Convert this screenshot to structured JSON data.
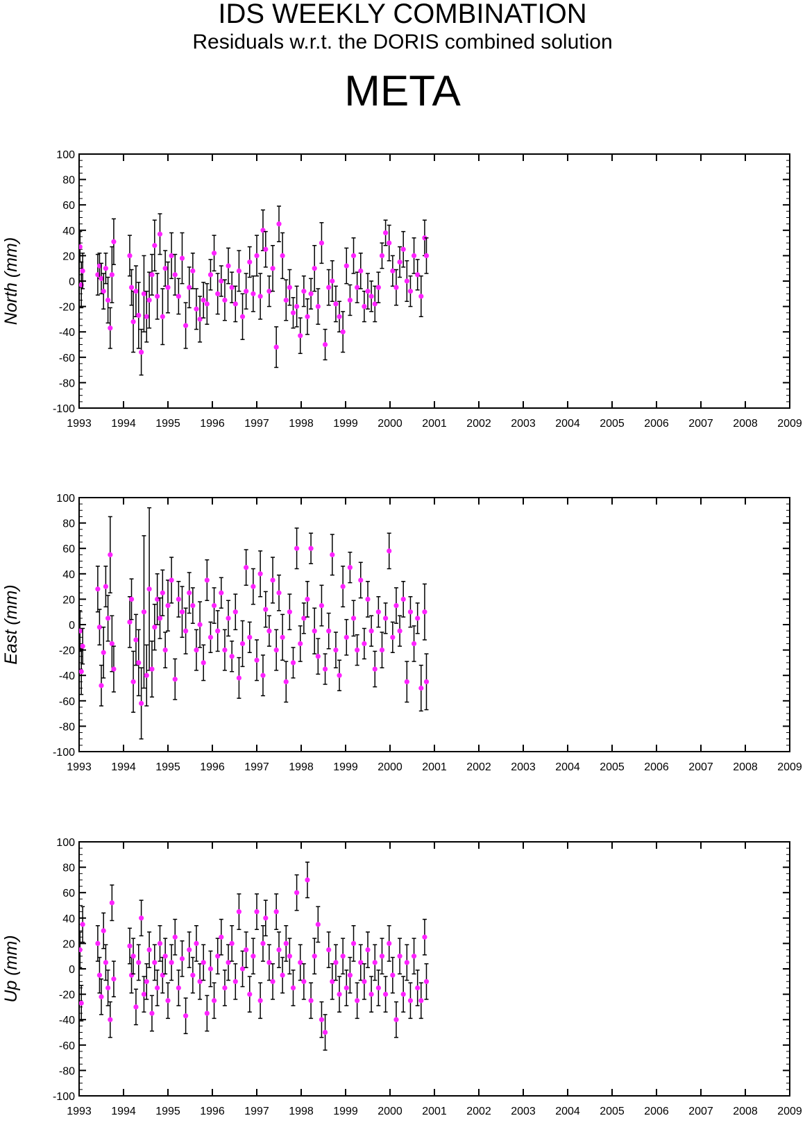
{
  "header": {
    "title": "IDS WEEKLY COMBINATION",
    "subtitle": "Residuals w.r.t. the DORIS combined solution",
    "station": "META"
  },
  "colors": {
    "marker": "#ff22ff",
    "errorbar": "#000000",
    "axis": "#000000"
  },
  "chart_data": [
    {
      "type": "scatter",
      "ylabel": "North (mm)",
      "xlim": [
        1993,
        2009
      ],
      "ylim": [
        -100,
        100
      ],
      "xticks": [
        1993,
        1994,
        1995,
        1996,
        1997,
        1998,
        1999,
        2000,
        2001,
        2002,
        2003,
        2004,
        2005,
        2006,
        2007,
        2008,
        2009
      ],
      "yticks": [
        100,
        80,
        60,
        40,
        20,
        0,
        -20,
        -40,
        -60,
        -80,
        -100
      ],
      "series": [
        {
          "x": [
            1993.02,
            1993.05,
            1993.08,
            1993.42,
            1993.46,
            1993.5,
            1993.55,
            1993.6,
            1993.65,
            1993.7,
            1993.74,
            1993.78,
            1994.14,
            1994.18,
            1994.22,
            1994.28,
            1994.34,
            1994.4,
            1994.46,
            1994.52,
            1994.58,
            1994.64,
            1994.7,
            1994.76,
            1994.82,
            1994.88,
            1994.94,
            1995.0,
            1995.08,
            1995.16,
            1995.24,
            1995.32,
            1995.4,
            1995.48,
            1995.56,
            1995.64,
            1995.72,
            1995.8,
            1995.88,
            1995.96,
            1996.04,
            1996.12,
            1996.2,
            1996.28,
            1996.36,
            1996.44,
            1996.52,
            1996.6,
            1996.68,
            1996.76,
            1996.84,
            1996.92,
            1997.0,
            1997.08,
            1997.14,
            1997.2,
            1997.28,
            1997.36,
            1997.44,
            1997.5,
            1997.58,
            1997.66,
            1997.74,
            1997.82,
            1997.9,
            1997.98,
            1998.06,
            1998.14,
            1998.22,
            1998.3,
            1998.38,
            1998.46,
            1998.54,
            1998.62,
            1998.7,
            1998.78,
            1998.86,
            1998.94,
            1999.02,
            1999.1,
            1999.18,
            1999.26,
            1999.34,
            1999.42,
            1999.5,
            1999.58,
            1999.66,
            1999.74,
            1999.82,
            1999.9,
            1999.98,
            2000.06,
            2000.14,
            2000.22,
            2000.3,
            2000.38,
            2000.46,
            2000.54,
            2000.62,
            2000.7,
            2000.78,
            2000.82
          ],
          "y": [
            27,
            -3,
            8,
            5,
            12,
            2,
            -8,
            10,
            -15,
            -37,
            5,
            31,
            20,
            -5,
            -32,
            -8,
            -27,
            -56,
            -10,
            -28,
            -15,
            5,
            28,
            -12,
            37,
            -28,
            10,
            -5,
            20,
            5,
            -12,
            18,
            -35,
            -5,
            8,
            -22,
            -30,
            -15,
            -18,
            5,
            22,
            -10,
            0,
            -15,
            12,
            -5,
            -18,
            8,
            -28,
            -8,
            15,
            -10,
            20,
            -12,
            40,
            25,
            -8,
            10,
            -52,
            45,
            20,
            -15,
            -5,
            -25,
            -20,
            -43,
            -8,
            -28,
            -10,
            10,
            -20,
            30,
            -50,
            -5,
            0,
            -18,
            -28,
            -40,
            12,
            -15,
            20,
            -5,
            8,
            -20,
            -8,
            -12,
            -18,
            -5,
            20,
            38,
            30,
            8,
            -5,
            15,
            25,
            0,
            -8,
            20,
            5,
            -12,
            34,
            20
          ],
          "err": [
            12,
            18,
            14,
            16,
            10,
            12,
            14,
            12,
            18,
            16,
            22,
            18,
            16,
            14,
            24,
            20,
            26,
            18,
            30,
            20,
            22,
            16,
            20,
            18,
            16,
            22,
            14,
            20,
            18,
            16,
            14,
            20,
            18,
            16,
            14,
            16,
            18,
            14,
            16,
            12,
            14,
            16,
            12,
            16,
            14,
            12,
            14,
            16,
            18,
            14,
            12,
            14,
            16,
            18,
            16,
            14,
            12,
            18,
            16,
            14,
            18,
            16,
            14,
            12,
            16,
            14,
            12,
            14,
            12,
            18,
            14,
            16,
            12,
            14,
            16,
            14,
            12,
            16,
            14,
            12,
            14,
            12,
            14,
            12,
            14,
            12,
            14,
            12,
            10,
            10,
            14,
            12,
            14,
            12,
            14,
            16,
            12,
            14,
            12,
            16,
            14,
            14
          ]
        }
      ]
    },
    {
      "type": "scatter",
      "ylabel": "East (mm)",
      "xlim": [
        1993,
        2009
      ],
      "ylim": [
        -100,
        100
      ],
      "xticks": [
        1993,
        1994,
        1995,
        1996,
        1997,
        1998,
        1999,
        2000,
        2001,
        2002,
        2003,
        2004,
        2005,
        2006,
        2007,
        2008,
        2009
      ],
      "yticks": [
        100,
        80,
        60,
        40,
        20,
        0,
        -20,
        -40,
        -60,
        -80,
        -100
      ],
      "series": [
        {
          "x": [
            1993.02,
            1993.05,
            1993.08,
            1993.42,
            1993.46,
            1993.5,
            1993.55,
            1993.6,
            1993.65,
            1993.7,
            1993.74,
            1993.78,
            1994.14,
            1994.18,
            1994.22,
            1994.28,
            1994.34,
            1994.4,
            1994.46,
            1994.52,
            1994.58,
            1994.64,
            1994.7,
            1994.76,
            1994.82,
            1994.88,
            1994.94,
            1995.0,
            1995.08,
            1995.16,
            1995.24,
            1995.32,
            1995.4,
            1995.48,
            1995.56,
            1995.64,
            1995.72,
            1995.8,
            1995.88,
            1995.96,
            1996.04,
            1996.12,
            1996.2,
            1996.28,
            1996.36,
            1996.44,
            1996.52,
            1996.6,
            1996.68,
            1996.76,
            1996.84,
            1996.92,
            1997.0,
            1997.08,
            1997.14,
            1997.2,
            1997.28,
            1997.36,
            1997.44,
            1997.5,
            1997.58,
            1997.66,
            1997.74,
            1997.82,
            1997.9,
            1997.98,
            1998.06,
            1998.14,
            1998.22,
            1998.3,
            1998.38,
            1998.46,
            1998.54,
            1998.62,
            1998.7,
            1998.78,
            1998.86,
            1998.94,
            1999.02,
            1999.1,
            1999.18,
            1999.26,
            1999.34,
            1999.42,
            1999.5,
            1999.58,
            1999.66,
            1999.74,
            1999.82,
            1999.9,
            1999.98,
            2000.06,
            2000.14,
            2000.22,
            2000.3,
            2000.38,
            2000.46,
            2000.54,
            2000.62,
            2000.7,
            2000.78,
            2000.82
          ],
          "y": [
            -5,
            -37,
            -17,
            28,
            -2,
            -48,
            -22,
            30,
            5,
            55,
            -15,
            -35,
            2,
            20,
            -45,
            -12,
            -30,
            -62,
            10,
            -40,
            28,
            -35,
            -2,
            20,
            5,
            25,
            -20,
            15,
            35,
            -43,
            20,
            10,
            -5,
            25,
            15,
            -20,
            0,
            -30,
            35,
            -10,
            15,
            -5,
            25,
            -20,
            5,
            -25,
            10,
            -42,
            -15,
            45,
            -10,
            30,
            -28,
            40,
            -40,
            12,
            -5,
            35,
            -20,
            25,
            -10,
            -45,
            10,
            -30,
            60,
            -15,
            5,
            20,
            60,
            -5,
            -25,
            15,
            -35,
            -5,
            55,
            -20,
            -40,
            30,
            -10,
            45,
            5,
            -20,
            35,
            -15,
            20,
            -5,
            -35,
            10,
            -20,
            5,
            58,
            -10,
            15,
            -5,
            20,
            -45,
            10,
            -15,
            5,
            -50,
            10,
            -45
          ],
          "err": [
            16,
            18,
            14,
            18,
            14,
            16,
            20,
            16,
            18,
            30,
            22,
            18,
            20,
            16,
            24,
            20,
            26,
            28,
            60,
            24,
            64,
            22,
            18,
            20,
            16,
            18,
            14,
            20,
            18,
            16,
            14,
            20,
            18,
            16,
            14,
            16,
            18,
            14,
            16,
            12,
            14,
            16,
            12,
            16,
            14,
            12,
            14,
            16,
            18,
            14,
            12,
            14,
            16,
            18,
            16,
            14,
            12,
            18,
            16,
            14,
            18,
            16,
            14,
            12,
            16,
            14,
            12,
            14,
            12,
            18,
            14,
            16,
            12,
            14,
            16,
            14,
            12,
            16,
            14,
            12,
            14,
            12,
            14,
            12,
            14,
            12,
            14,
            12,
            14,
            12,
            14,
            12,
            14,
            12,
            14,
            16,
            12,
            14,
            12,
            18,
            22,
            22
          ]
        }
      ]
    },
    {
      "type": "scatter",
      "ylabel": "Up (mm)",
      "xlim": [
        1993,
        2009
      ],
      "ylim": [
        -100,
        100
      ],
      "xticks": [
        1993,
        1994,
        1995,
        1996,
        1997,
        1998,
        1999,
        2000,
        2001,
        2002,
        2003,
        2004,
        2005,
        2006,
        2007,
        2008,
        2009
      ],
      "yticks": [
        100,
        80,
        60,
        40,
        20,
        0,
        -20,
        -40,
        -60,
        -80,
        -100
      ],
      "series": [
        {
          "x": [
            1993.02,
            1993.05,
            1993.08,
            1993.42,
            1993.46,
            1993.5,
            1993.55,
            1993.6,
            1993.65,
            1993.7,
            1993.74,
            1993.78,
            1994.14,
            1994.18,
            1994.22,
            1994.28,
            1994.34,
            1994.4,
            1994.46,
            1994.52,
            1994.58,
            1994.64,
            1994.7,
            1994.76,
            1994.82,
            1994.88,
            1994.94,
            1995.0,
            1995.08,
            1995.16,
            1995.24,
            1995.32,
            1995.4,
            1995.48,
            1995.56,
            1995.64,
            1995.72,
            1995.8,
            1995.88,
            1995.96,
            1996.04,
            1996.12,
            1996.2,
            1996.28,
            1996.36,
            1996.44,
            1996.52,
            1996.6,
            1996.68,
            1996.76,
            1996.84,
            1996.92,
            1997.0,
            1997.08,
            1997.14,
            1997.2,
            1997.28,
            1997.36,
            1997.44,
            1997.5,
            1997.58,
            1997.66,
            1997.74,
            1997.82,
            1997.9,
            1997.98,
            1998.06,
            1998.14,
            1998.22,
            1998.3,
            1998.38,
            1998.46,
            1998.54,
            1998.62,
            1998.7,
            1998.78,
            1998.86,
            1998.94,
            1999.02,
            1999.1,
            1999.18,
            1999.26,
            1999.34,
            1999.42,
            1999.5,
            1999.58,
            1999.66,
            1999.74,
            1999.82,
            1999.9,
            1999.98,
            2000.06,
            2000.14,
            2000.22,
            2000.3,
            2000.38,
            2000.46,
            2000.54,
            2000.62,
            2000.7,
            2000.78,
            2000.82
          ],
          "y": [
            15,
            -27,
            35,
            20,
            -5,
            -22,
            30,
            5,
            -15,
            -40,
            52,
            -8,
            18,
            -5,
            10,
            -30,
            5,
            40,
            -20,
            -10,
            15,
            -35,
            5,
            -15,
            20,
            -5,
            10,
            -25,
            5,
            25,
            -15,
            8,
            -37,
            15,
            -5,
            20,
            -10,
            5,
            -35,
            0,
            -25,
            10,
            25,
            -15,
            5,
            20,
            -10,
            45,
            0,
            15,
            -20,
            10,
            45,
            -25,
            20,
            40,
            5,
            -10,
            45,
            15,
            -5,
            20,
            10,
            -15,
            60,
            5,
            -10,
            70,
            -25,
            10,
            35,
            -40,
            -50,
            15,
            -10,
            5,
            -20,
            10,
            -15,
            -5,
            20,
            -25,
            5,
            -10,
            15,
            -20,
            5,
            -15,
            10,
            -20,
            20,
            -5,
            -40,
            10,
            -20,
            5,
            -25,
            10,
            -15,
            -25,
            25,
            -10
          ]
        }
      ]
    }
  ]
}
